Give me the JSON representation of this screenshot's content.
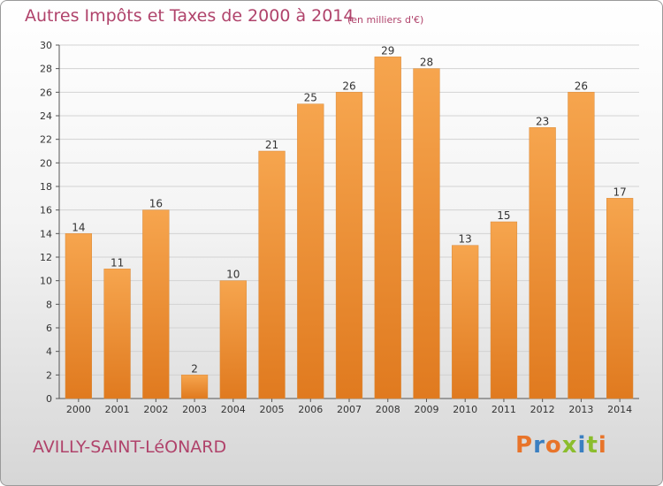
{
  "header": {
    "title": "Autres Impôts et Taxes de 2000 à 2014",
    "subtitle": "(en milliers d'€)"
  },
  "footer": {
    "city": "AVILLY-SAINT-LéONARD",
    "brand": "Proxiti"
  },
  "colors": {
    "title": "#b0436b",
    "bar_top": "#f6a54e",
    "bar_bottom": "#e07a1f",
    "brand_letters": [
      "#e8742a",
      "#3a7fc1",
      "#e8742a",
      "#8bbd2d",
      "#3a7fc1",
      "#8bbd2d",
      "#e8742a"
    ]
  },
  "chart_data": {
    "type": "bar",
    "title": "Autres Impôts et Taxes de 2000 à 2014",
    "subtitle": "(en milliers d'€)",
    "categories": [
      "2000",
      "2001",
      "2002",
      "2003",
      "2004",
      "2005",
      "2006",
      "2007",
      "2008",
      "2009",
      "2010",
      "2011",
      "2012",
      "2013",
      "2014"
    ],
    "values": [
      14,
      11,
      16,
      2,
      10,
      21,
      25,
      26,
      29,
      28,
      13,
      15,
      23,
      26,
      17
    ],
    "ylim": [
      0,
      30
    ],
    "yticks": [
      0,
      2,
      4,
      6,
      8,
      10,
      12,
      14,
      16,
      18,
      20,
      22,
      24,
      26,
      28,
      30
    ],
    "grid": true,
    "data_labels": true
  }
}
